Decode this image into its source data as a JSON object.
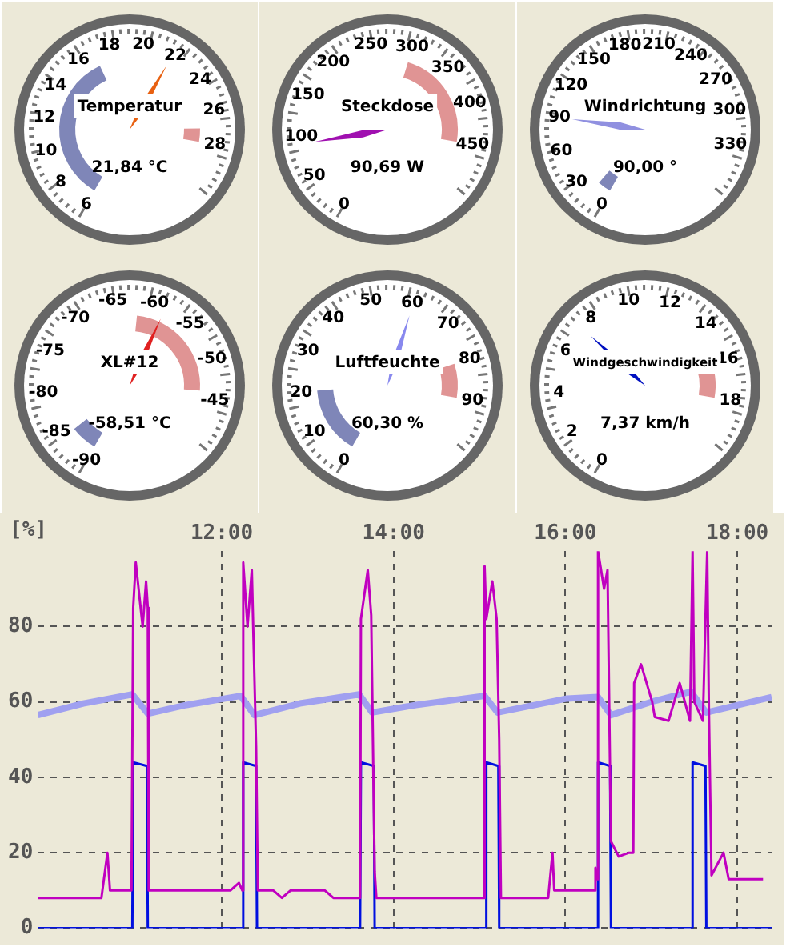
{
  "chart_data": [
    {
      "type": "other",
      "title": "Temperatur",
      "annotations": [
        "6",
        "8",
        "10",
        "12",
        "14",
        "16",
        "18",
        "20",
        "22",
        "24",
        "26",
        "28"
      ],
      "value_labels": [
        "21,84 °C"
      ]
    },
    {
      "type": "other",
      "title": "Steckdose",
      "annotations": [
        "0",
        "50",
        "100",
        "150",
        "200",
        "250",
        "300",
        "350",
        "400",
        "450"
      ],
      "value_labels": [
        "90,69 W"
      ]
    },
    {
      "type": "other",
      "title": "Windrichtung",
      "annotations": [
        "0",
        "30",
        "60",
        "90",
        "120",
        "150",
        "180",
        "210",
        "240",
        "270",
        "300",
        "330"
      ],
      "value_labels": [
        "90,00 °"
      ]
    },
    {
      "type": "other",
      "title": "XL#12",
      "annotations": [
        "-90",
        "-85",
        "-80",
        "-75",
        "-70",
        "-65",
        "-60",
        "-55",
        "-50",
        "-45"
      ],
      "value_labels": [
        "-58,51 °C"
      ]
    },
    {
      "type": "other",
      "title": "Luftfeuchte",
      "annotations": [
        "0",
        "10",
        "20",
        "30",
        "40",
        "50",
        "60",
        "70",
        "80",
        "90"
      ],
      "value_labels": [
        "60,30 %"
      ]
    },
    {
      "type": "other",
      "title": "Windgeschwindigkeit",
      "annotations": [
        "0",
        "2",
        "4",
        "6",
        "8",
        "10",
        "12",
        "14",
        "16",
        "18"
      ],
      "value_labels": [
        "7,37 km/h"
      ]
    },
    {
      "type": "line",
      "ylabel": "[%]",
      "xlim": [
        9.86,
        18.4
      ],
      "xticks": [
        {
          "value": 12,
          "label": "12:00"
        },
        {
          "value": 14,
          "label": "14:00"
        },
        {
          "value": 16,
          "label": "16:00"
        },
        {
          "value": 18,
          "label": "18:00"
        }
      ],
      "ylim": [
        0,
        100
      ],
      "yticks": [
        0,
        20,
        40,
        60,
        80
      ],
      "grid": true,
      "legend": false,
      "series": [
        {
          "color": "#c000c0",
          "x": [
            9.86,
            10.6,
            10.67,
            10.7,
            10.95,
            10.97,
            11.0,
            11.08,
            11.12,
            11.14,
            11.15,
            12.1,
            12.2,
            12.24,
            12.25,
            12.3,
            12.35,
            12.4,
            12.42,
            12.6,
            12.7,
            12.8,
            13.2,
            13.3,
            13.61,
            13.62,
            13.7,
            13.74,
            13.78,
            13.8,
            15.05,
            15.06,
            15.08,
            15.15,
            15.2,
            15.23,
            15.25,
            15.8,
            15.85,
            15.87,
            16.34,
            16.35,
            16.36,
            16.37,
            16.38,
            16.45,
            16.49,
            16.53,
            16.62,
            16.74,
            16.79,
            16.8,
            16.88,
            17.01,
            17.04,
            17.2,
            17.33,
            17.45,
            17.48,
            17.5,
            17.6,
            17.65,
            17.67,
            17.7,
            17.84,
            17.9,
            18.3
          ],
          "values": [
            8,
            8,
            20,
            10,
            10,
            85,
            97,
            80,
            92,
            85,
            10,
            10,
            12,
            10,
            97,
            80,
            95,
            48,
            10,
            10,
            8,
            10,
            10,
            8,
            8,
            82,
            95,
            83,
            15,
            8,
            8,
            96,
            82,
            92,
            82,
            50,
            8,
            8,
            20,
            10,
            10,
            16,
            13,
            13,
            100,
            90,
            95,
            23,
            19,
            20,
            20,
            65,
            70,
            60,
            56,
            55,
            65,
            55,
            100,
            60,
            55,
            100,
            58,
            14,
            20,
            13,
            13
          ]
        },
        {
          "color": "#0010e0",
          "x": [
            9.86,
            10.96,
            10.97,
            11.13,
            11.14,
            12.24,
            12.25,
            12.4,
            12.41,
            13.61,
            13.62,
            13.77,
            13.78,
            15.07,
            15.08,
            15.22,
            15.23,
            16.37,
            16.38,
            16.52,
            16.53,
            17.47,
            17.48,
            17.63,
            17.64,
            18.4
          ],
          "values": [
            0,
            0,
            44,
            43,
            0,
            0,
            44,
            43,
            0,
            0,
            44,
            43,
            0,
            0,
            44,
            43,
            0,
            0,
            44,
            43,
            0,
            0,
            44,
            43,
            0,
            0
          ]
        },
        {
          "color": "#a0a0f0",
          "x": [
            9.86,
            10.39,
            10.96,
            11.14,
            11.59,
            12.22,
            12.38,
            12.91,
            13.6,
            13.75,
            14.26,
            15.06,
            15.21,
            16.02,
            16.38,
            16.53,
            17.04,
            17.46,
            17.64,
            18.4
          ],
          "values": [
            56.5,
            59.6,
            62,
            56.9,
            59.2,
            61.6,
            56.5,
            59.6,
            62,
            57.2,
            59.2,
            61.6,
            57.2,
            60.9,
            61.3,
            56.5,
            60.3,
            62.7,
            57.2,
            61.3
          ]
        }
      ]
    }
  ]
}
